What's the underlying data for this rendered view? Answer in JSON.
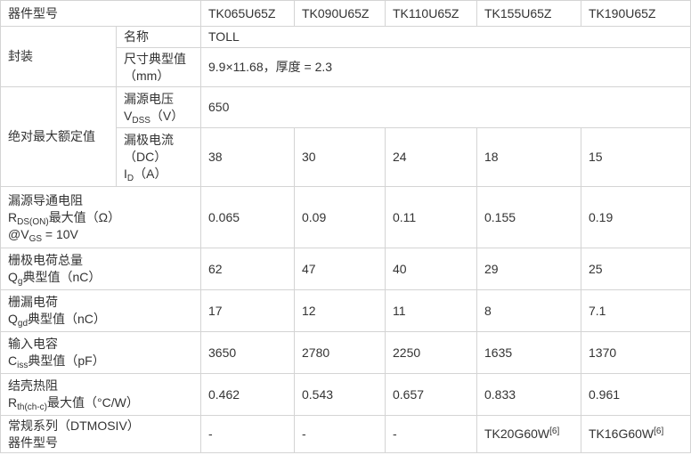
{
  "header": {
    "label": "器件型号",
    "models": [
      "TK065U65Z",
      "TK090U65Z",
      "TK110U65Z",
      "TK155U65Z",
      "TK190U65Z"
    ]
  },
  "groups": {
    "package": "封装",
    "absolute_max": "绝对最大额定值"
  },
  "rows": [
    {
      "id": "package-name",
      "group": "package",
      "label": [
        [
          {
            "t": "名称"
          }
        ]
      ],
      "span_value": "TOLL"
    },
    {
      "id": "package-size",
      "group": "package",
      "label": [
        [
          {
            "t": "尺寸典型值"
          }
        ],
        [
          {
            "t": "（mm）"
          }
        ]
      ],
      "span_value": "9.9×11.68，厚度 = 2.3"
    },
    {
      "id": "vdss",
      "group": "absolute_max",
      "label": [
        [
          {
            "t": "漏源电压"
          }
        ],
        [
          {
            "t": "V"
          },
          {
            "sub": "DSS"
          },
          {
            "t": "（V）"
          }
        ]
      ],
      "span_value": "650"
    },
    {
      "id": "id",
      "group": "absolute_max",
      "label": [
        [
          {
            "t": "漏极电流"
          }
        ],
        [
          {
            "t": "（DC）"
          }
        ],
        [
          {
            "t": "I"
          },
          {
            "sub": "D"
          },
          {
            "t": "（A）"
          }
        ]
      ],
      "values": [
        "38",
        "30",
        "24",
        "18",
        "15"
      ]
    },
    {
      "id": "rds-on",
      "label": [
        [
          {
            "t": "漏源导通电阻"
          }
        ],
        [
          {
            "t": "R"
          },
          {
            "sub": "DS(ON)"
          },
          {
            "t": "最大值（Ω）"
          }
        ],
        [
          {
            "t": "@V"
          },
          {
            "sub": "GS"
          },
          {
            "t": " = 10V"
          }
        ]
      ],
      "values": [
        "0.065",
        "0.09",
        "0.11",
        "0.155",
        "0.19"
      ]
    },
    {
      "id": "qg",
      "label": [
        [
          {
            "t": "栅极电荷总量"
          }
        ],
        [
          {
            "t": "Q"
          },
          {
            "sub": "g"
          },
          {
            "t": "典型值（nC）"
          }
        ]
      ],
      "values": [
        "62",
        "47",
        "40",
        "29",
        "25"
      ]
    },
    {
      "id": "qgd",
      "label": [
        [
          {
            "t": "栅漏电荷"
          }
        ],
        [
          {
            "t": "Q"
          },
          {
            "sub": "gd"
          },
          {
            "t": "典型值（nC）"
          }
        ]
      ],
      "values": [
        "17",
        "12",
        "11",
        "8",
        "7.1"
      ]
    },
    {
      "id": "ciss",
      "label": [
        [
          {
            "t": "输入电容"
          }
        ],
        [
          {
            "t": "C"
          },
          {
            "sub": "iss"
          },
          {
            "t": "典型值（pF）"
          }
        ]
      ],
      "values": [
        "3650",
        "2780",
        "2250",
        "1635",
        "1370"
      ]
    },
    {
      "id": "rth",
      "label": [
        [
          {
            "t": "结壳热阻"
          }
        ],
        [
          {
            "t": "R"
          },
          {
            "sub": "th(ch-c)"
          },
          {
            "t": "最大值（°C/W）"
          }
        ]
      ],
      "values": [
        "0.462",
        "0.543",
        "0.657",
        "0.833",
        "0.961"
      ]
    },
    {
      "id": "dtmos",
      "label": [
        [
          {
            "t": "常规系列（DTMOSIV）"
          }
        ],
        [
          {
            "t": "器件型号"
          }
        ]
      ],
      "values": [
        "-",
        "-",
        "-",
        [
          {
            "t": "TK20G60W"
          },
          {
            "sup": "[6]"
          }
        ],
        [
          {
            "t": "TK16G60W"
          },
          {
            "sup": "[6]"
          }
        ]
      ]
    }
  ]
}
